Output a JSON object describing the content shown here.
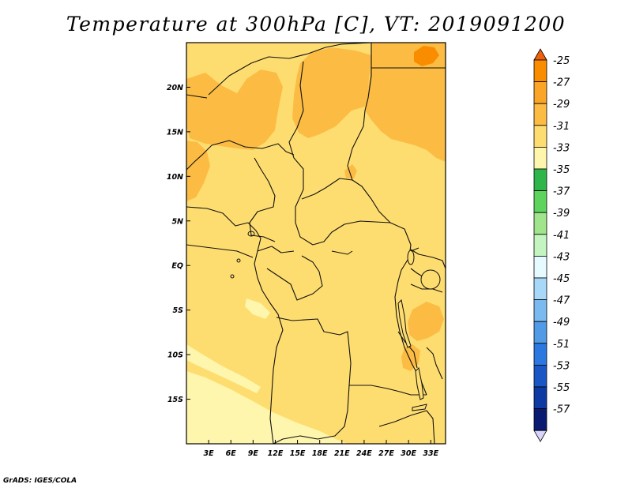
{
  "title": "Temperature at 300hPa [C], VT: 2019091200",
  "credit": "GrADS: IGES/COLA",
  "map": {
    "lat_labels": [
      "20N",
      "15N",
      "10N",
      "5N",
      "EQ",
      "5S",
      "10S",
      "15S"
    ],
    "lat_values": [
      20,
      15,
      10,
      5,
      0,
      -5,
      -10,
      -15
    ],
    "lon_labels": [
      "3E",
      "6E",
      "9E",
      "12E",
      "15E",
      "18E",
      "21E",
      "24E",
      "27E",
      "30E",
      "33E"
    ],
    "lon_values": [
      3,
      6,
      9,
      12,
      15,
      18,
      21,
      24,
      27,
      30,
      33
    ],
    "lon_range": [
      0,
      35
    ],
    "lat_range": [
      -20,
      25
    ]
  },
  "colorbar": {
    "levels": [
      "-25",
      "-27",
      "-29",
      "-31",
      "-33",
      "-35",
      "-37",
      "-39",
      "-41",
      "-43",
      "-45",
      "-47",
      "-49",
      "-51",
      "-53",
      "-55",
      "-57"
    ],
    "colors": [
      "#f0600a",
      "#fa8c00",
      "#fba526",
      "#fcbc44",
      "#fedd70",
      "#fef6ac",
      "#2eb64a",
      "#5ed45e",
      "#a0e48c",
      "#c4f4c0",
      "#e6fbff",
      "#a8d8f8",
      "#7abaf0",
      "#509ae6",
      "#2a78e0",
      "#1a56c4",
      "#0e3aa4",
      "#0a1a70",
      "#d8d4fa"
    ]
  }
}
